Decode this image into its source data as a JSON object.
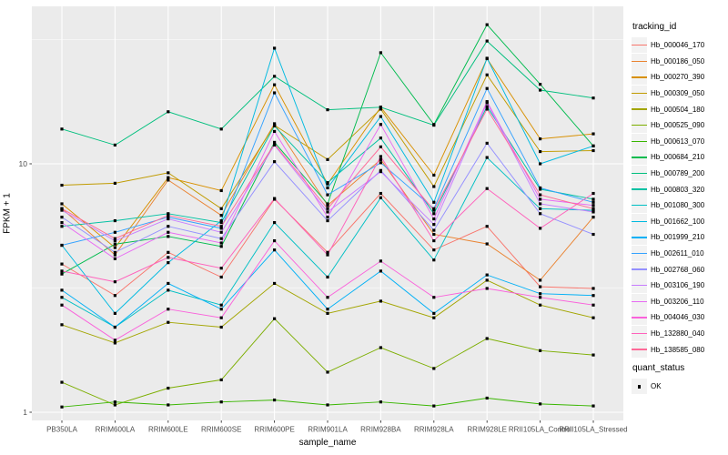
{
  "chart_data": {
    "type": "line",
    "title": "",
    "xlabel": "sample_name",
    "ylabel": "FPKM + 1",
    "y_scale": "log10",
    "y_tick_labels": [
      "10",
      "1"
    ],
    "y_tick_values": [
      10,
      1
    ],
    "y_minor_values": [
      3.1623,
      31.623
    ],
    "ylim": [
      0.93,
      43
    ],
    "grid": "major-white-on-gray, minor-white-thin",
    "legend_position": "right",
    "point_shape": "black-square",
    "categories": [
      "PB350LA",
      "RRIM600LA",
      "RRIM600LE",
      "RRIM600SE",
      "RRIM600PE",
      "RRIM901LA",
      "RRIM928BA",
      "RRIM928LA",
      "RRIM928LE",
      "RRII105LA_Control",
      "RRII105LA_Stressed"
    ],
    "series": [
      {
        "name": "Hb_000046_170",
        "color": "#F8766D",
        "values": [
          3.95,
          2.95,
          4.4,
          3.5,
          7.2,
          4.4,
          7.6,
          4.5,
          5.6,
          3.2,
          3.15
        ]
      },
      {
        "name": "Hb_000186_050",
        "color": "#EA8331",
        "values": [
          6.6,
          4.3,
          8.6,
          6.2,
          14.5,
          6.8,
          10.4,
          5.2,
          4.76,
          3.4,
          6.1
        ]
      },
      {
        "name": "Hb_000270_390",
        "color": "#D89000",
        "values": [
          6.9,
          4.6,
          8.8,
          7.8,
          20.8,
          8.3,
          16.9,
          9.0,
          26.5,
          12.6,
          13.2
        ]
      },
      {
        "name": "Hb_000309_050",
        "color": "#C09B00",
        "values": [
          8.2,
          8.35,
          9.2,
          6.6,
          14.3,
          10.4,
          16.6,
          8.1,
          22.8,
          11.2,
          11.3
        ]
      },
      {
        "name": "Hb_000504_180",
        "color": "#A3A500",
        "values": [
          2.25,
          1.9,
          2.3,
          2.2,
          3.3,
          2.5,
          2.8,
          2.4,
          3.4,
          2.7,
          2.4
        ]
      },
      {
        "name": "Hb_000525_090",
        "color": "#7CAE00",
        "values": [
          1.32,
          1.07,
          1.25,
          1.35,
          2.38,
          1.45,
          1.82,
          1.5,
          1.98,
          1.77,
          1.7
        ]
      },
      {
        "name": "Hb_000613_070",
        "color": "#39B600",
        "values": [
          1.05,
          1.1,
          1.07,
          1.1,
          1.12,
          1.07,
          1.1,
          1.06,
          1.14,
          1.08,
          1.06
        ]
      },
      {
        "name": "Hb_000684_210",
        "color": "#00BB4E",
        "values": [
          3.6,
          4.75,
          5.1,
          4.65,
          12.2,
          6.9,
          28.0,
          14.4,
          36.3,
          20.9,
          11.8
        ]
      },
      {
        "name": "Hb_000789_200",
        "color": "#00BF7D",
        "values": [
          13.8,
          11.9,
          16.2,
          13.8,
          22.5,
          16.5,
          16.9,
          14.3,
          31.2,
          19.8,
          18.4
        ]
      },
      {
        "name": "Hb_000803_320",
        "color": "#00C1A3",
        "values": [
          5.6,
          5.9,
          6.3,
          5.8,
          14.2,
          8.4,
          12.7,
          6.3,
          17.0,
          7.9,
          7.2
        ]
      },
      {
        "name": "Hb_001080_300",
        "color": "#00BFC4",
        "values": [
          2.9,
          2.2,
          3.1,
          2.7,
          5.8,
          3.5,
          7.3,
          4.1,
          10.6,
          6.6,
          6.5
        ]
      },
      {
        "name": "Hb_001662_100",
        "color": "#00BAE0",
        "values": [
          4.7,
          2.5,
          4.0,
          5.9,
          29.2,
          8.0,
          15.5,
          7.0,
          26.6,
          10.0,
          11.8
        ]
      },
      {
        "name": "Hb_001999_210",
        "color": "#00B0F6",
        "values": [
          3.1,
          2.2,
          3.3,
          2.6,
          4.5,
          2.6,
          3.7,
          2.5,
          3.57,
          3.0,
          2.95
        ]
      },
      {
        "name": "Hb_002611_010",
        "color": "#35A2FF",
        "values": [
          4.7,
          5.3,
          6.1,
          5.5,
          19.3,
          7.5,
          10.1,
          6.6,
          20.1,
          8.0,
          7.0
        ]
      },
      {
        "name": "Hb_002768_060",
        "color": "#9590FF",
        "values": [
          6.1,
          4.4,
          5.6,
          5.0,
          10.2,
          5.9,
          9.4,
          5.4,
          12.1,
          6.3,
          5.2
        ]
      },
      {
        "name": "Hb_003106_190",
        "color": "#C77CFF",
        "values": [
          6.5,
          4.9,
          6.0,
          5.3,
          11.9,
          6.4,
          9.3,
          5.7,
          17.6,
          6.9,
          6.4
        ]
      },
      {
        "name": "Hb_003206_110",
        "color": "#E76BF3",
        "values": [
          5.8,
          4.15,
          5.3,
          4.8,
          13.5,
          6.1,
          14.4,
          6.0,
          17.8,
          7.2,
          6.8
        ]
      },
      {
        "name": "Hb_004046_030",
        "color": "#FA62DB",
        "values": [
          2.7,
          1.95,
          2.6,
          2.4,
          4.9,
          2.9,
          4.06,
          2.9,
          3.15,
          2.9,
          2.7
        ]
      },
      {
        "name": "Hb_132880_040",
        "color": "#FF62BC",
        "values": [
          3.7,
          3.35,
          4.2,
          3.8,
          7.25,
          4.3,
          10.7,
          4.9,
          7.95,
          5.5,
          7.6
        ]
      },
      {
        "name": "Hb_138585_080",
        "color": "#FF6A98",
        "values": [
          6.6,
          5.0,
          6.2,
          5.6,
          12.0,
          6.6,
          11.7,
          6.5,
          16.6,
          7.5,
          6.6
        ]
      }
    ]
  },
  "legend": {
    "title": "tracking_id",
    "quant_title": "quant_status",
    "quant_item": "OK"
  },
  "axes": {
    "ylabel": "FPKM + 1",
    "xlabel": "sample_name"
  },
  "colors": {
    "panel_bg": "#EBEBEB",
    "grid_major": "#FFFFFF",
    "grid_minor": "#FFFFFF",
    "tick_text": "#4D4D4D",
    "tick_mark": "#333333",
    "point": "#000000",
    "legend_key_bg": "#F2F2F2"
  }
}
